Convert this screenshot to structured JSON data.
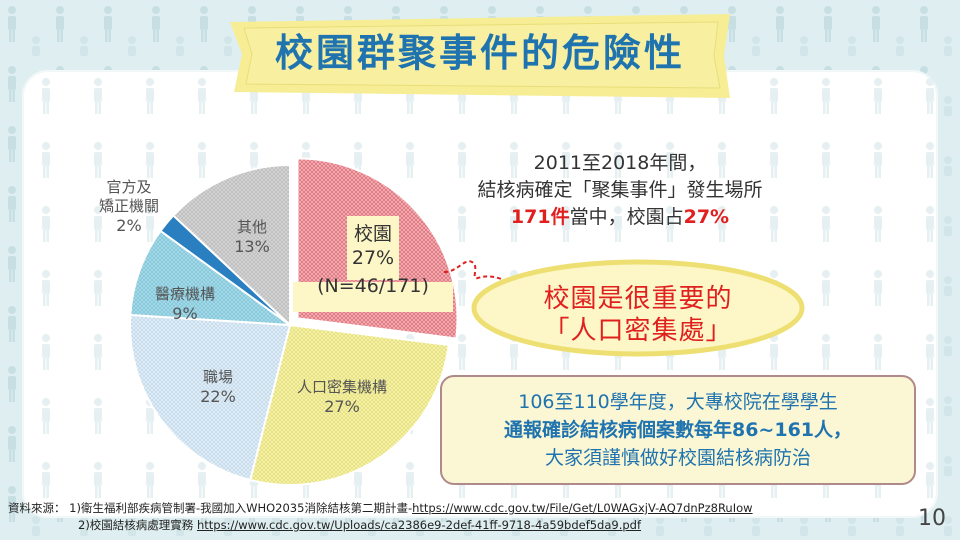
{
  "title": "校園群聚事件的危險性",
  "chart_data": {
    "type": "pie",
    "slices": [
      {
        "label": "校園",
        "value": 27,
        "pct_text": "27%"
      },
      {
        "label": "人口密集機構",
        "value": 27,
        "pct_text": "27%"
      },
      {
        "label": "職場",
        "value": 22,
        "pct_text": "22%"
      },
      {
        "label": "醫療機構",
        "value": 9,
        "pct_text": "9%"
      },
      {
        "label": "官方及矯正機關",
        "value": 2,
        "pct_text": "2%"
      },
      {
        "label": "其他",
        "value": 13,
        "pct_text": "13%"
      }
    ],
    "campus_n": "(N=46/171)",
    "colors": [
      "#e88a91",
      "#f3ef9a",
      "#d6e7f2",
      "#9ed4e4",
      "#2a7fc0",
      "#cccccc"
    ]
  },
  "labels": {
    "official_line1": "官方及",
    "official_line2": "矯正機關",
    "official_pct": "2%",
    "other": "其他",
    "other_pct": "13%",
    "medical": "醫療機構",
    "medical_pct": "9%",
    "workplace": "職場",
    "workplace_pct": "22%",
    "dense": "人口密集機構",
    "dense_pct": "27%",
    "campus": "校園",
    "campus_pct": "27%",
    "campus_n": "(N=46/171)"
  },
  "headline": {
    "line1": "2011至2018年間，",
    "line2": "結核病確定「聚集事件」發生場所",
    "line3_a": "171件",
    "line3_b": "當中，校園占",
    "line3_c": "27%"
  },
  "bubble": {
    "line1": "校園是很重要的",
    "line2": "「人口密集處」"
  },
  "box": {
    "line1": "106至110學年度，大專校院在學學生",
    "line2": "通報確診結核病個案數每年86~161人，",
    "line3": "大家須謹慎做好校園結核病防治"
  },
  "source": {
    "label": "資料來源：",
    "item1_text": "1)衛生福利部疾病管制署-我國加入WHO2035消除結核第二期計畫-",
    "item1_link": "https://www.cdc.gov.tw/File/Get/L0WAGxjV-AQ7dnPz8RuIow",
    "item2_text": "2)校園結核病處理實務 ",
    "item2_link": "https://www.cdc.gov.tw/Uploads/ca2386e9-2def-41ff-9718-4a59bdef5da9.pdf"
  },
  "page_number": "10"
}
